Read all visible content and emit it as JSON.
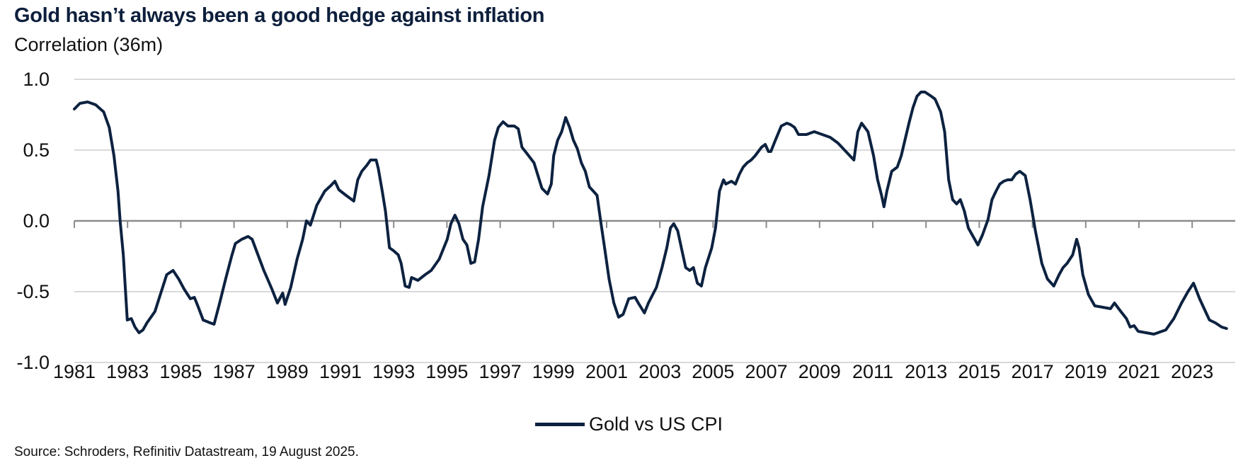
{
  "chart_data": {
    "type": "line",
    "title": "Gold hasn’t always been a good hedge against inflation",
    "subtitle": "Correlation (36m)",
    "xlabel": "",
    "ylabel": "Correlation (36m)",
    "ylim": [
      -1.0,
      1.0
    ],
    "xlim": [
      1981,
      2025
    ],
    "yticks": [
      "1.0",
      "0.5",
      "0.0",
      "-0.5",
      "-1.0"
    ],
    "ytick_values": [
      1.0,
      0.5,
      0.0,
      -0.5,
      -1.0
    ],
    "xticks": [
      "1981",
      "1983",
      "1985",
      "1987",
      "1989",
      "1991",
      "1993",
      "1995",
      "1997",
      "1999",
      "2001",
      "2003",
      "2005",
      "2007",
      "2009",
      "2011",
      "2013",
      "2015",
      "2017",
      "2019",
      "2021",
      "2023"
    ],
    "grid": true,
    "legend_position": "bottom-center",
    "colors": {
      "series": "#0d2240",
      "grid": "#d9d9d9",
      "axis": "#8c8c8c",
      "title": "#0d1f3c"
    },
    "series": [
      {
        "name": "Gold vs US CPI",
        "x": [
          1981.0,
          1981.21,
          1981.5,
          1981.8,
          1982.1,
          1982.31,
          1982.49,
          1982.64,
          1982.72,
          1982.84,
          1982.93,
          1982.99,
          1983.14,
          1983.28,
          1983.43,
          1983.58,
          1983.73,
          1984.03,
          1984.18,
          1984.47,
          1984.71,
          1984.92,
          1985.12,
          1985.36,
          1985.51,
          1985.66,
          1985.84,
          1986.1,
          1986.25,
          1986.46,
          1986.7,
          1986.91,
          1987.05,
          1987.29,
          1987.53,
          1987.68,
          1987.88,
          1988.12,
          1988.42,
          1988.63,
          1988.83,
          1988.92,
          1989.13,
          1989.37,
          1989.58,
          1989.72,
          1989.87,
          1990.11,
          1990.41,
          1990.64,
          1990.79,
          1990.94,
          1991.21,
          1991.5,
          1991.65,
          1991.8,
          1991.98,
          1992.13,
          1992.34,
          1992.42,
          1992.57,
          1992.69,
          1992.84,
          1992.99,
          1993.17,
          1993.28,
          1993.43,
          1993.58,
          1993.67,
          1993.91,
          1994.18,
          1994.41,
          1994.71,
          1995.01,
          1995.15,
          1995.3,
          1995.45,
          1995.6,
          1995.75,
          1995.9,
          1996.04,
          1996.19,
          1996.34,
          1996.58,
          1996.79,
          1996.93,
          1997.11,
          1997.29,
          1997.53,
          1997.68,
          1997.82,
          1998.03,
          1998.27,
          1998.57,
          1998.78,
          1998.92,
          1999.01,
          1999.16,
          1999.31,
          1999.46,
          1999.61,
          1999.75,
          1999.9,
          2000.05,
          2000.2,
          2000.35,
          2000.5,
          2000.64,
          2000.79,
          2000.94,
          2001.09,
          2001.27,
          2001.45,
          2001.62,
          2001.83,
          2002.07,
          2002.19,
          2002.42,
          2002.57,
          2002.87,
          2003.08,
          2003.26,
          2003.4,
          2003.52,
          2003.67,
          2003.82,
          2003.97,
          2004.12,
          2004.26,
          2004.41,
          2004.56,
          2004.71,
          2004.95,
          2005.09,
          2005.24,
          2005.39,
          2005.48,
          2005.69,
          2005.84,
          2005.99,
          2006.13,
          2006.28,
          2006.43,
          2006.58,
          2006.82,
          2006.96,
          2007.08,
          2007.17,
          2007.32,
          2007.56,
          2007.77,
          2007.91,
          2008.06,
          2008.21,
          2008.51,
          2008.8,
          2009.1,
          2009.4,
          2009.69,
          2009.99,
          2010.29,
          2010.44,
          2010.58,
          2010.82,
          2011.03,
          2011.18,
          2011.33,
          2011.42,
          2011.53,
          2011.71,
          2011.92,
          2012.07,
          2012.36,
          2012.51,
          2012.66,
          2012.81,
          2012.96,
          2013.2,
          2013.34,
          2013.55,
          2013.7,
          2013.85,
          2014.0,
          2014.15,
          2014.29,
          2014.44,
          2014.59,
          2014.74,
          2014.95,
          2015.12,
          2015.33,
          2015.48,
          2015.63,
          2015.77,
          2015.92,
          2016.07,
          2016.22,
          2016.37,
          2016.52,
          2016.73,
          2016.91,
          2017.11,
          2017.35,
          2017.56,
          2017.8,
          2018.0,
          2018.15,
          2018.3,
          2018.51,
          2018.66,
          2018.75,
          2018.89,
          2019.1,
          2019.34,
          2019.64,
          2019.93,
          2020.08,
          2020.32,
          2020.53,
          2020.67,
          2020.82,
          2020.97,
          2021.27,
          2021.56,
          2021.71,
          2022.01,
          2022.31,
          2022.6,
          2022.84,
          2023.05,
          2023.28,
          2023.5,
          2023.65,
          2023.87,
          2024.11,
          2024.29
        ],
        "y": [
          0.79,
          0.83,
          0.84,
          0.82,
          0.77,
          0.66,
          0.46,
          0.21,
          0.0,
          -0.24,
          -0.52,
          -0.7,
          -0.69,
          -0.75,
          -0.79,
          -0.77,
          -0.72,
          -0.64,
          -0.55,
          -0.38,
          -0.35,
          -0.41,
          -0.48,
          -0.55,
          -0.54,
          -0.61,
          -0.7,
          -0.72,
          -0.73,
          -0.58,
          -0.4,
          -0.25,
          -0.16,
          -0.13,
          -0.11,
          -0.13,
          -0.23,
          -0.35,
          -0.48,
          -0.58,
          -0.51,
          -0.59,
          -0.47,
          -0.27,
          -0.13,
          0.0,
          -0.03,
          0.11,
          0.21,
          0.25,
          0.28,
          0.22,
          0.18,
          0.14,
          0.29,
          0.35,
          0.39,
          0.43,
          0.43,
          0.37,
          0.21,
          0.07,
          -0.19,
          -0.21,
          -0.24,
          -0.3,
          -0.46,
          -0.47,
          -0.4,
          -0.42,
          -0.38,
          -0.35,
          -0.27,
          -0.13,
          -0.02,
          0.04,
          -0.02,
          -0.13,
          -0.17,
          -0.3,
          -0.29,
          -0.13,
          0.1,
          0.32,
          0.57,
          0.66,
          0.7,
          0.67,
          0.67,
          0.65,
          0.52,
          0.47,
          0.41,
          0.23,
          0.19,
          0.26,
          0.46,
          0.57,
          0.63,
          0.73,
          0.66,
          0.57,
          0.51,
          0.41,
          0.35,
          0.24,
          0.21,
          0.18,
          -0.02,
          -0.21,
          -0.41,
          -0.58,
          -0.68,
          -0.66,
          -0.55,
          -0.54,
          -0.58,
          -0.65,
          -0.58,
          -0.47,
          -0.33,
          -0.19,
          -0.05,
          -0.02,
          -0.07,
          -0.2,
          -0.33,
          -0.35,
          -0.33,
          -0.44,
          -0.46,
          -0.33,
          -0.19,
          -0.05,
          0.21,
          0.29,
          0.26,
          0.28,
          0.26,
          0.33,
          0.38,
          0.41,
          0.43,
          0.46,
          0.52,
          0.54,
          0.49,
          0.49,
          0.56,
          0.67,
          0.69,
          0.68,
          0.66,
          0.61,
          0.61,
          0.63,
          0.61,
          0.59,
          0.55,
          0.49,
          0.43,
          0.63,
          0.69,
          0.63,
          0.46,
          0.29,
          0.18,
          0.1,
          0.21,
          0.35,
          0.38,
          0.46,
          0.69,
          0.8,
          0.88,
          0.91,
          0.91,
          0.88,
          0.86,
          0.77,
          0.63,
          0.29,
          0.15,
          0.12,
          0.15,
          0.07,
          -0.05,
          -0.1,
          -0.17,
          -0.1,
          0.01,
          0.15,
          0.21,
          0.26,
          0.28,
          0.29,
          0.29,
          0.33,
          0.35,
          0.32,
          0.15,
          -0.07,
          -0.3,
          -0.41,
          -0.46,
          -0.38,
          -0.33,
          -0.3,
          -0.24,
          -0.13,
          -0.19,
          -0.38,
          -0.52,
          -0.6,
          -0.61,
          -0.62,
          -0.58,
          -0.64,
          -0.69,
          -0.75,
          -0.74,
          -0.78,
          -0.79,
          -0.8,
          -0.79,
          -0.77,
          -0.69,
          -0.58,
          -0.5,
          -0.44,
          -0.55,
          -0.64,
          -0.7,
          -0.72,
          -0.75,
          -0.76
        ]
      }
    ],
    "source": "Source: Schroders, Refinitiv Datastream, 19 August 2025."
  }
}
